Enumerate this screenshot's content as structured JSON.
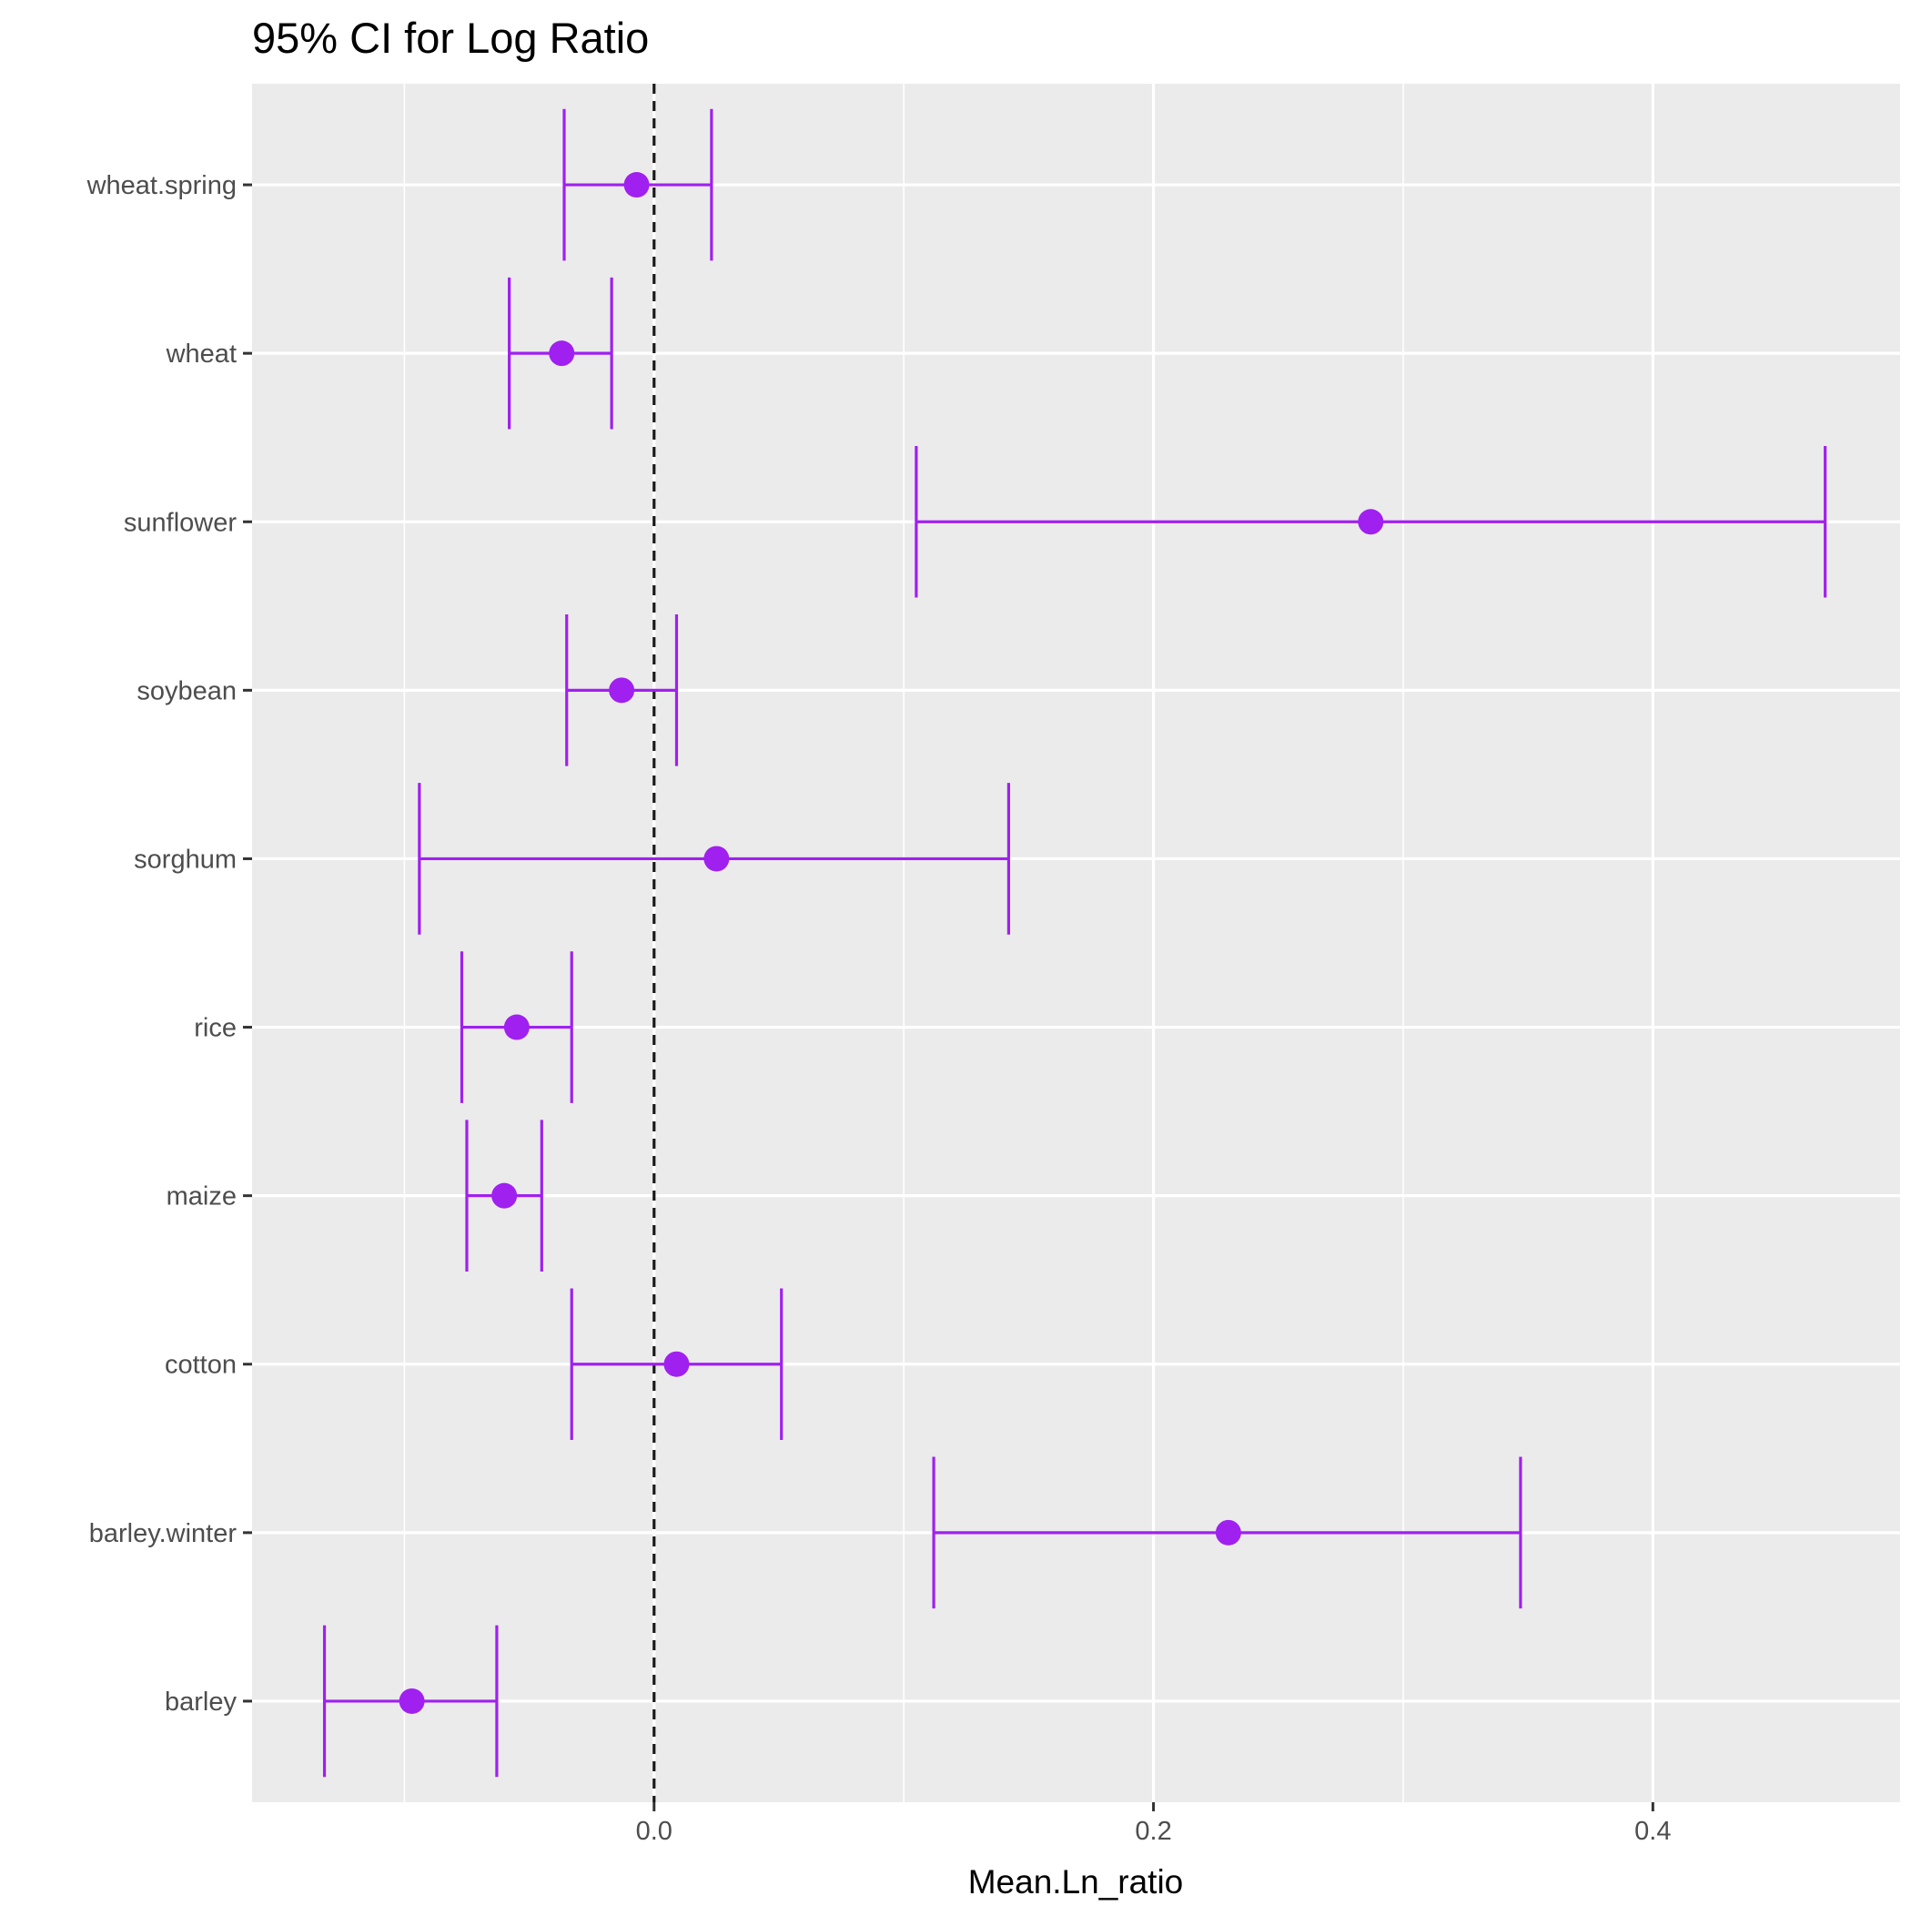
{
  "chart_data": {
    "type": "errorbar",
    "title": "95% CI for Log Ratio",
    "xlabel": "Mean.Ln_ratio",
    "ylabel": "",
    "xlim": [
      -0.161,
      0.499
    ],
    "x_ticks": [
      0.0,
      0.2,
      0.4
    ],
    "x_tick_labels": [
      "0.0",
      "0.2",
      "0.4"
    ],
    "reference_line": {
      "x": 0,
      "style": "dashed"
    },
    "grid": true,
    "legend": "none",
    "color": "#a020f0",
    "categories": [
      "barley",
      "barley.winter",
      "cotton",
      "maize",
      "rice",
      "sorghum",
      "soybean",
      "sunflower",
      "wheat",
      "wheat.spring"
    ],
    "series": [
      {
        "mean": [
          -0.097,
          0.23,
          0.009,
          -0.06,
          -0.055,
          0.025,
          -0.013,
          0.287,
          -0.037,
          -0.007
        ],
        "lower": [
          -0.132,
          0.112,
          -0.033,
          -0.075,
          -0.077,
          -0.094,
          -0.035,
          0.105,
          -0.058,
          -0.036
        ],
        "upper": [
          -0.063,
          0.347,
          0.051,
          -0.045,
          -0.033,
          0.142,
          0.009,
          0.469,
          -0.017,
          0.023
        ]
      }
    ]
  }
}
